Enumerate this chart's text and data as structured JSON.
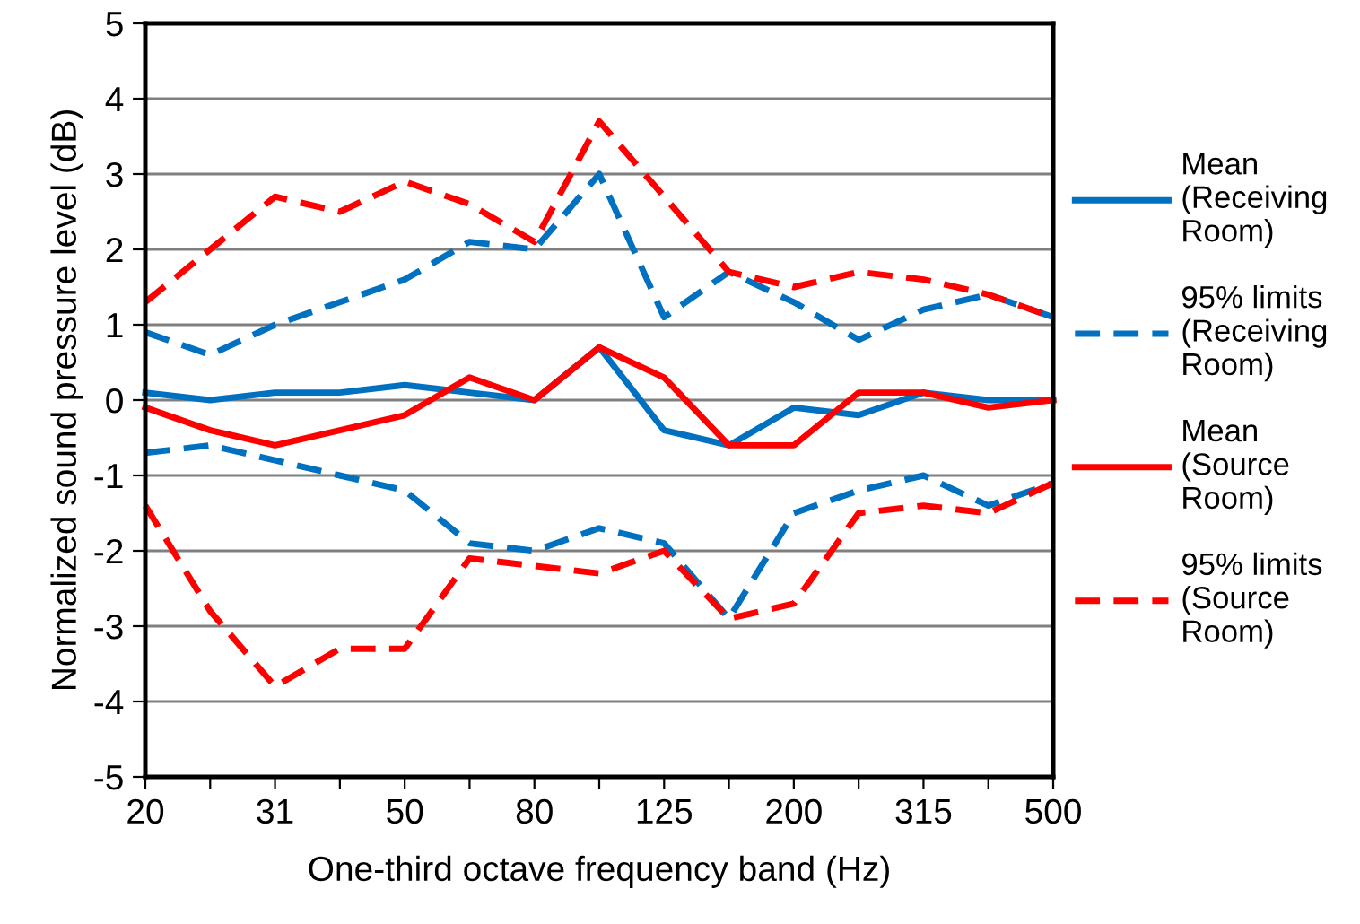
{
  "chart_data": {
    "type": "line",
    "xlabel": "One-third octave frequency band (Hz)",
    "ylabel": "Normalized sound pressure level (dB)",
    "categories": [
      "20",
      null,
      "31",
      null,
      "50",
      null,
      "80",
      null,
      "125",
      null,
      "200",
      null,
      "315",
      null,
      "500"
    ],
    "ylim": [
      -5,
      5
    ],
    "yticks": [
      -5,
      -4,
      -3,
      -2,
      -1,
      0,
      1,
      2,
      3,
      4,
      5
    ],
    "grid": "y",
    "legend": "right",
    "series": [
      {
        "name": "Mean (Receiving Room)",
        "color": "#0070c0",
        "line_style": "solid",
        "values": [
          0.1,
          0,
          0.1,
          0.1,
          0.2,
          0.1,
          0,
          0.7,
          -0.4,
          -0.6,
          -0.1,
          -0.2,
          0.1,
          0,
          0
        ]
      },
      {
        "name": "95% limits (Receiving Room)",
        "color": "#0070c0",
        "line_style": "dashed",
        "values": [
          0.9,
          0.6,
          1.0,
          1.3,
          1.6,
          2.1,
          2.0,
          3.0,
          1.1,
          1.7,
          1.3,
          0.8,
          1.2,
          1.4,
          1.1
        ]
      },
      {
        "color": "#0070c0",
        "line_style": "dashed",
        "values": [
          -0.7,
          -0.6,
          -0.8,
          -1.0,
          -1.2,
          -1.9,
          -2.0,
          -1.7,
          -1.9,
          -2.9,
          -1.5,
          -1.2,
          -1.0,
          -1.4,
          -1.1
        ]
      },
      {
        "name": "Mean (Source Room)",
        "color": "#ff0000",
        "line_style": "solid",
        "values": [
          -0.1,
          -0.4,
          -0.6,
          -0.4,
          -0.2,
          0.3,
          0,
          0.7,
          0.3,
          -0.6,
          -0.6,
          0.1,
          0.1,
          -0.1,
          0
        ]
      },
      {
        "name": "95% limits (Source Room)",
        "color": "#ff0000",
        "line_style": "dashed",
        "values": [
          1.3,
          2.0,
          2.7,
          2.5,
          2.9,
          2.6,
          2.1,
          3.7,
          2.7,
          1.7,
          1.5,
          1.7,
          1.6,
          1.4,
          1.1
        ]
      },
      {
        "color": "#ff0000",
        "line_style": "dashed",
        "values": [
          -1.4,
          -2.8,
          -3.8,
          -3.3,
          -3.3,
          -2.1,
          -2.2,
          -2.3,
          -2.0,
          -2.9,
          -2.7,
          -1.5,
          -1.4,
          -1.5,
          -1.1
        ]
      }
    ]
  }
}
